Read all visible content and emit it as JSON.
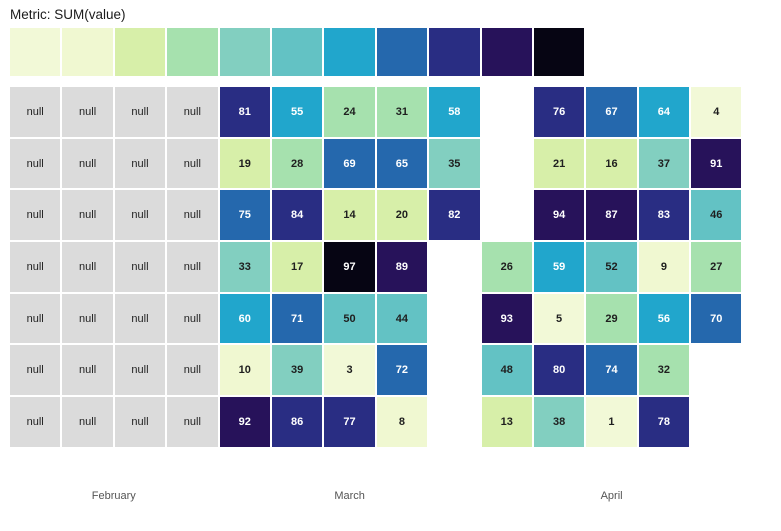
{
  "title": "Metric: SUM(value)",
  "legend": {
    "colors": [
      "#f2f9d7",
      "#f0f8d1",
      "#d7efa9",
      "#a6e1ae",
      "#82cfc0",
      "#63c2c4",
      "#21a6cc",
      "#2568ad",
      "#292d83",
      "#27125a",
      "#060513"
    ]
  },
  "chart_data": {
    "type": "heatmap",
    "title": "Metric: SUM(value)",
    "null_label": "null",
    "null_color": "#dbdbdb",
    "text_color_dark": "#1f1f1f",
    "text_color_light": "#ffffff",
    "color_thresholds": [
      5,
      11,
      22,
      32,
      43,
      54,
      64,
      75,
      86,
      96
    ],
    "months": [
      {
        "label": "February",
        "col_start": 0,
        "col_span": 4
      },
      {
        "label": "March",
        "col_start": 4,
        "col_span": 5
      },
      {
        "label": "April",
        "col_start": 9,
        "col_span": 5
      }
    ],
    "rows": [
      [
        "null",
        "null",
        "null",
        "null",
        81,
        55,
        24,
        31,
        58,
        null,
        76,
        67,
        64,
        4
      ],
      [
        "null",
        "null",
        "null",
        "null",
        19,
        28,
        69,
        65,
        35,
        null,
        21,
        16,
        37,
        91
      ],
      [
        "null",
        "null",
        "null",
        "null",
        75,
        84,
        14,
        20,
        82,
        null,
        94,
        87,
        83,
        46
      ],
      [
        "null",
        "null",
        "null",
        "null",
        33,
        17,
        97,
        89,
        null,
        26,
        59,
        52,
        9,
        27
      ],
      [
        "null",
        "null",
        "null",
        "null",
        60,
        71,
        50,
        44,
        null,
        93,
        5,
        29,
        56,
        70
      ],
      [
        "null",
        "null",
        "null",
        "null",
        10,
        39,
        3,
        72,
        null,
        48,
        80,
        74,
        32,
        null
      ],
      [
        "null",
        "null",
        "null",
        "null",
        92,
        86,
        77,
        8,
        null,
        13,
        38,
        1,
        78,
        null
      ]
    ]
  }
}
